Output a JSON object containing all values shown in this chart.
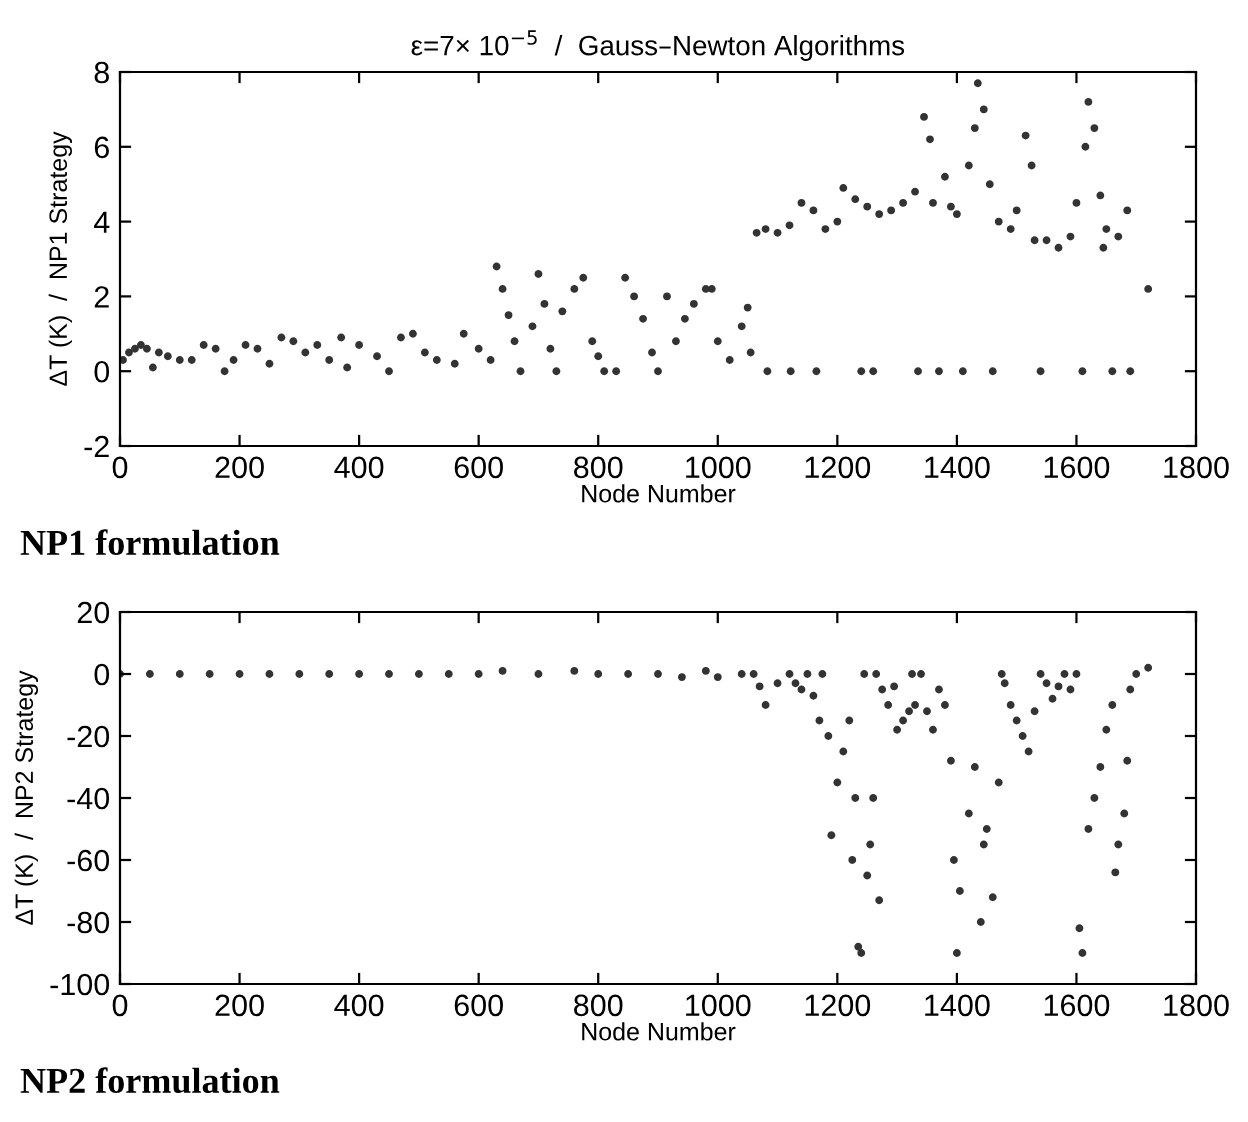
{
  "chart_data": [
    {
      "type": "scatter",
      "title": "ε=7× 10$^{−5}$  /  Gauss–Newton Algorithms",
      "xlabel": "Node Number",
      "ylabel": "ΔT (K)  /  NP1 Strategy",
      "annotations": [
        "NP1 formulation"
      ],
      "xlim": [
        0,
        1800
      ],
      "ylim": [
        -2,
        8
      ],
      "xticks": [
        0,
        200,
        400,
        600,
        800,
        1000,
        1200,
        1400,
        1600,
        1800
      ],
      "yticks": [
        -2,
        0,
        2,
        4,
        6,
        8
      ],
      "grid": false,
      "marker": "circle",
      "series": [
        {
          "color": "#333333",
          "x": [
            5,
            15,
            25,
            35,
            45,
            55,
            65,
            80,
            100,
            120,
            140,
            160,
            175,
            190,
            210,
            230,
            250,
            270,
            290,
            310,
            330,
            350,
            370,
            380,
            400,
            430,
            450,
            470,
            490,
            510,
            530,
            560,
            575,
            600,
            620,
            630,
            640,
            650,
            660,
            670,
            690,
            700,
            710,
            720,
            730,
            740,
            760,
            775,
            790,
            800,
            810,
            830,
            845,
            860,
            875,
            890,
            900,
            915,
            930,
            945,
            960,
            980,
            990,
            1000,
            1020,
            1040,
            1050,
            1055,
            1065,
            1080,
            1083,
            1100,
            1120,
            1122,
            1140,
            1160,
            1165,
            1180,
            1200,
            1210,
            1230,
            1240,
            1250,
            1260,
            1270,
            1290,
            1310,
            1330,
            1335,
            1345,
            1355,
            1360,
            1370,
            1380,
            1390,
            1400,
            1410,
            1420,
            1430,
            1435,
            1445,
            1455,
            1460,
            1470,
            1490,
            1500,
            1515,
            1525,
            1530,
            1540,
            1550,
            1570,
            1590,
            1600,
            1610,
            1615,
            1620,
            1630,
            1640,
            1645,
            1650,
            1660,
            1670,
            1685,
            1690,
            1720
          ],
          "values": [
            0.3,
            0.5,
            0.6,
            0.7,
            0.6,
            0.1,
            0.5,
            0.4,
            0.3,
            0.3,
            0.7,
            0.6,
            0.0,
            0.3,
            0.7,
            0.6,
            0.2,
            0.9,
            0.8,
            0.5,
            0.7,
            0.3,
            0.9,
            0.1,
            0.7,
            0.4,
            0.0,
            0.9,
            1.0,
            0.5,
            0.3,
            0.2,
            1.0,
            0.6,
            0.3,
            2.8,
            2.2,
            1.5,
            0.8,
            0.0,
            1.2,
            2.6,
            1.8,
            0.6,
            0.0,
            1.6,
            2.2,
            2.5,
            0.8,
            0.4,
            0.0,
            0.0,
            2.5,
            2.0,
            1.4,
            0.5,
            0.0,
            2.0,
            0.8,
            1.4,
            1.8,
            2.2,
            2.2,
            0.8,
            0.3,
            1.2,
            1.7,
            0.5,
            3.7,
            3.8,
            0.0,
            3.7,
            3.9,
            0.0,
            4.5,
            4.3,
            0.0,
            3.8,
            4.0,
            4.9,
            4.6,
            0.0,
            4.4,
            0.0,
            4.2,
            4.3,
            4.5,
            4.8,
            0.0,
            6.8,
            6.2,
            4.5,
            0.0,
            5.2,
            4.4,
            4.2,
            0.0,
            5.5,
            6.5,
            7.7,
            7.0,
            5.0,
            0.0,
            4.0,
            3.8,
            4.3,
            6.3,
            5.5,
            3.5,
            0.0,
            3.5,
            3.3,
            3.6,
            4.5,
            0.0,
            6.0,
            7.2,
            6.5,
            4.7,
            3.3,
            3.8,
            0.0,
            3.6,
            4.3,
            0.0,
            2.2
          ]
        }
      ]
    },
    {
      "type": "scatter",
      "xlabel": "Node Number",
      "ylabel": "ΔT (K)  /  NP2 Strategy",
      "annotations": [
        "NP2 formulation"
      ],
      "xlim": [
        0,
        1800
      ],
      "ylim": [
        -100,
        20
      ],
      "xticks": [
        0,
        200,
        400,
        600,
        800,
        1000,
        1200,
        1400,
        1600,
        1800
      ],
      "yticks": [
        -100,
        -80,
        -60,
        -40,
        -20,
        0,
        20
      ],
      "grid": false,
      "marker": "circle",
      "series": [
        {
          "color": "#333333",
          "x": [
            0,
            50,
            100,
            150,
            200,
            250,
            300,
            350,
            400,
            450,
            500,
            550,
            600,
            640,
            700,
            760,
            800,
            850,
            900,
            940,
            980,
            1000,
            1040,
            1060,
            1070,
            1080,
            1100,
            1120,
            1130,
            1140,
            1150,
            1160,
            1170,
            1175,
            1185,
            1190,
            1200,
            1210,
            1220,
            1225,
            1230,
            1235,
            1240,
            1245,
            1250,
            1255,
            1260,
            1265,
            1270,
            1275,
            1285,
            1295,
            1300,
            1310,
            1320,
            1325,
            1330,
            1340,
            1350,
            1360,
            1370,
            1380,
            1390,
            1395,
            1400,
            1405,
            1420,
            1430,
            1440,
            1445,
            1450,
            1460,
            1470,
            1475,
            1480,
            1490,
            1500,
            1510,
            1520,
            1530,
            1540,
            1550,
            1560,
            1570,
            1580,
            1590,
            1600,
            1605,
            1610,
            1620,
            1630,
            1640,
            1650,
            1660,
            1665,
            1670,
            1680,
            1685,
            1690,
            1700,
            1720
          ],
          "values": [
            0,
            0,
            0,
            0,
            0,
            0,
            0,
            0,
            0,
            0,
            0,
            0,
            0,
            1,
            0,
            1,
            0,
            0,
            0,
            -1,
            1,
            -1,
            0,
            0,
            -4,
            -10,
            -3,
            0,
            -3,
            -5,
            0,
            -7,
            -15,
            0,
            -20,
            -52,
            -35,
            -25,
            -15,
            -60,
            -40,
            -88,
            -90,
            0,
            -65,
            -55,
            -40,
            0,
            -73,
            -5,
            -10,
            -4,
            -18,
            -15,
            -12,
            0,
            -10,
            0,
            -12,
            -18,
            -5,
            -10,
            -28,
            -60,
            -90,
            -70,
            -45,
            -30,
            -80,
            -55,
            -50,
            -72,
            -35,
            0,
            -3,
            -10,
            -15,
            -20,
            -25,
            -12,
            0,
            -3,
            -8,
            -4,
            0,
            -5,
            0,
            -82,
            -90,
            -50,
            -40,
            -30,
            -18,
            -10,
            -64,
            -55,
            -45,
            -28,
            -5,
            0,
            2
          ]
        }
      ]
    }
  ]
}
